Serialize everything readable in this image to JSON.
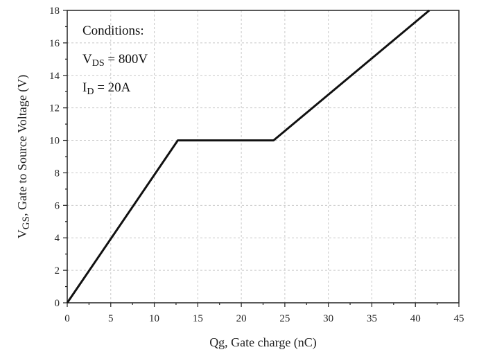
{
  "chart_data": {
    "type": "line",
    "title": "",
    "xlabel": "Qg, Gate charge (nC)",
    "ylabel_main": "V",
    "ylabel_sub": "GS",
    "ylabel_rest": ", Gate to Source Voltage (V)",
    "xlim": [
      0,
      45
    ],
    "ylim": [
      0,
      18
    ],
    "x_ticks": [
      0,
      5,
      10,
      15,
      20,
      25,
      30,
      35,
      40,
      45
    ],
    "y_ticks": [
      0,
      2,
      4,
      6,
      8,
      10,
      12,
      14,
      16,
      18
    ],
    "grid": true,
    "series": [
      {
        "x": [
          0,
          12.7,
          23.7,
          41.6
        ],
        "y": [
          0,
          10,
          10,
          18
        ]
      }
    ],
    "annotations": {
      "line1": "Conditions:",
      "line2_main": "V",
      "line2_sub": "DS",
      "line2_rest": " = 800V",
      "line3_main": "I",
      "line3_sub": "D",
      "line3_rest": " = 20A"
    },
    "line_color": "#111111"
  }
}
